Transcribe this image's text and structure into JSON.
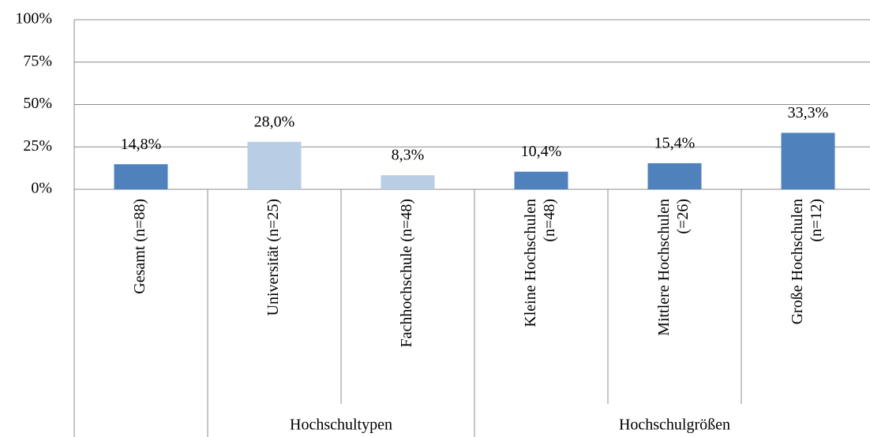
{
  "chart_data": {
    "type": "bar",
    "categories": [
      [
        "Gesamt (n=88)"
      ],
      [
        "Universität (n=25)"
      ],
      [
        "Fachhochschule (n=48)"
      ],
      [
        "Kleine Hochschulen",
        "(n=48)"
      ],
      [
        "Mittlere Hochschulen",
        "(=26)"
      ],
      [
        "Große Hochschulen",
        "(n=12)"
      ]
    ],
    "values": [
      14.8,
      28.0,
      8.3,
      10.4,
      15.4,
      33.3
    ],
    "value_labels": [
      "14,8%",
      "28,0%",
      "8,3%",
      "10,4%",
      "15,4%",
      "33,3%"
    ],
    "colors": [
      "#4f81bd",
      "#b9cde5",
      "#b9cde5",
      "#4f81bd",
      "#4f81bd",
      "#4f81bd"
    ],
    "groups": [
      {
        "label": "Hochschultypen",
        "members": [
          1,
          2
        ]
      },
      {
        "label": "Hochschulgrößen",
        "members": [
          3,
          4,
          5
        ]
      }
    ],
    "ylim": [
      0,
      100
    ],
    "yticks": [
      {
        "value": 0,
        "label": "0%"
      },
      {
        "value": 25,
        "label": "25%"
      },
      {
        "value": 50,
        "label": "50%"
      },
      {
        "value": 75,
        "label": "75%"
      },
      {
        "value": 100,
        "label": "100%"
      }
    ],
    "grid": true
  }
}
